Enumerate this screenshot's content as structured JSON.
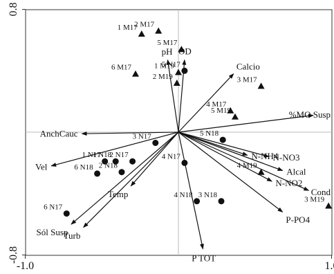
{
  "chart_data": {
    "type": "scatter",
    "title": "",
    "xlabel": "",
    "ylabel": "",
    "xlim": [
      -1.0,
      1.0
    ],
    "ylim": [
      -0.8,
      0.8
    ],
    "xticks": [
      {
        "value": -1.0,
        "label": "-1.0"
      },
      {
        "value": 1.0,
        "label": "1.0"
      }
    ],
    "yticks": [
      {
        "value": 0.8,
        "label": "0.8"
      },
      {
        "value": -0.8,
        "label": "-0.8"
      }
    ],
    "grid": false,
    "reference_lines": {
      "x": 0,
      "y": 0
    },
    "series": [
      {
        "marker": "triangle",
        "points": [
          {
            "label": "1 M17",
            "x": -0.24,
            "y": 0.64
          },
          {
            "label": "2 M17",
            "x": -0.13,
            "y": 0.66
          },
          {
            "label": "5 M17",
            "x": 0.02,
            "y": 0.54
          },
          {
            "label": "6 M17",
            "x": -0.28,
            "y": 0.38
          },
          {
            "label": "1 M19",
            "x": 0.0,
            "y": 0.39
          },
          {
            "label": "2 M19",
            "x": -0.01,
            "y": 0.32
          },
          {
            "label": "3 M17",
            "x": 0.54,
            "y": 0.3
          },
          {
            "label": "4 M17",
            "x": 0.34,
            "y": 0.14
          },
          {
            "label": "5 M19",
            "x": 0.37,
            "y": 0.1
          },
          {
            "label": "4 M19",
            "x": 0.54,
            "y": -0.26
          },
          {
            "label": "3 M19",
            "x": 0.98,
            "y": -0.48
          }
        ]
      },
      {
        "marker": "circle",
        "points": [
          {
            "label": "5 N17",
            "x": 0.04,
            "y": 0.4
          },
          {
            "label": "3 N17",
            "x": -0.15,
            "y": -0.07
          },
          {
            "label": "2 N17",
            "x": -0.3,
            "y": -0.19
          },
          {
            "label": "1 N17",
            "x": -0.48,
            "y": -0.19
          },
          {
            "label": "2 N18",
            "x": -0.37,
            "y": -0.26
          },
          {
            "label": "1 N18",
            "x": -0.41,
            "y": -0.19
          },
          {
            "label": "6 N18",
            "x": -0.53,
            "y": -0.27
          },
          {
            "label": "5 N18",
            "x": 0.29,
            "y": -0.05
          },
          {
            "label": "4 N17",
            "x": 0.04,
            "y": -0.2
          },
          {
            "label": "4 N18",
            "x": 0.12,
            "y": -0.45
          },
          {
            "label": "3 N18",
            "x": 0.28,
            "y": -0.45
          },
          {
            "label": "6 N17",
            "x": -0.73,
            "y": -0.53
          }
        ]
      }
    ],
    "vectors": [
      {
        "label": "pH",
        "x": -0.07,
        "y": 0.47
      },
      {
        "label": "OD",
        "x": 0.04,
        "y": 0.47
      },
      {
        "label": "Calcio",
        "x": 0.36,
        "y": 0.38
      },
      {
        "label": "%MO Susp",
        "x": 0.88,
        "y": 0.11
      },
      {
        "label": "AnchCauc",
        "x": -0.63,
        "y": -0.01
      },
      {
        "label": "Vel",
        "x": -0.83,
        "y": -0.22
      },
      {
        "label": "N-NH4",
        "x": 0.45,
        "y": -0.15
      },
      {
        "label": "N-NO3",
        "x": 0.59,
        "y": -0.16
      },
      {
        "label": "Alcal",
        "x": 0.68,
        "y": -0.25
      },
      {
        "label": "N-NO2",
        "x": 0.61,
        "y": -0.32
      },
      {
        "label": "Cond",
        "x": 0.85,
        "y": -0.38
      },
      {
        "label": "P-PO4",
        "x": 0.68,
        "y": -0.52
      },
      {
        "label": "Temp",
        "x": -0.31,
        "y": -0.35
      },
      {
        "label": "Sól Susp",
        "x": -0.7,
        "y": -0.6
      },
      {
        "label": "Turb",
        "x": -0.62,
        "y": -0.62
      },
      {
        "label": "P TOT",
        "x": 0.16,
        "y": -0.76
      }
    ]
  }
}
